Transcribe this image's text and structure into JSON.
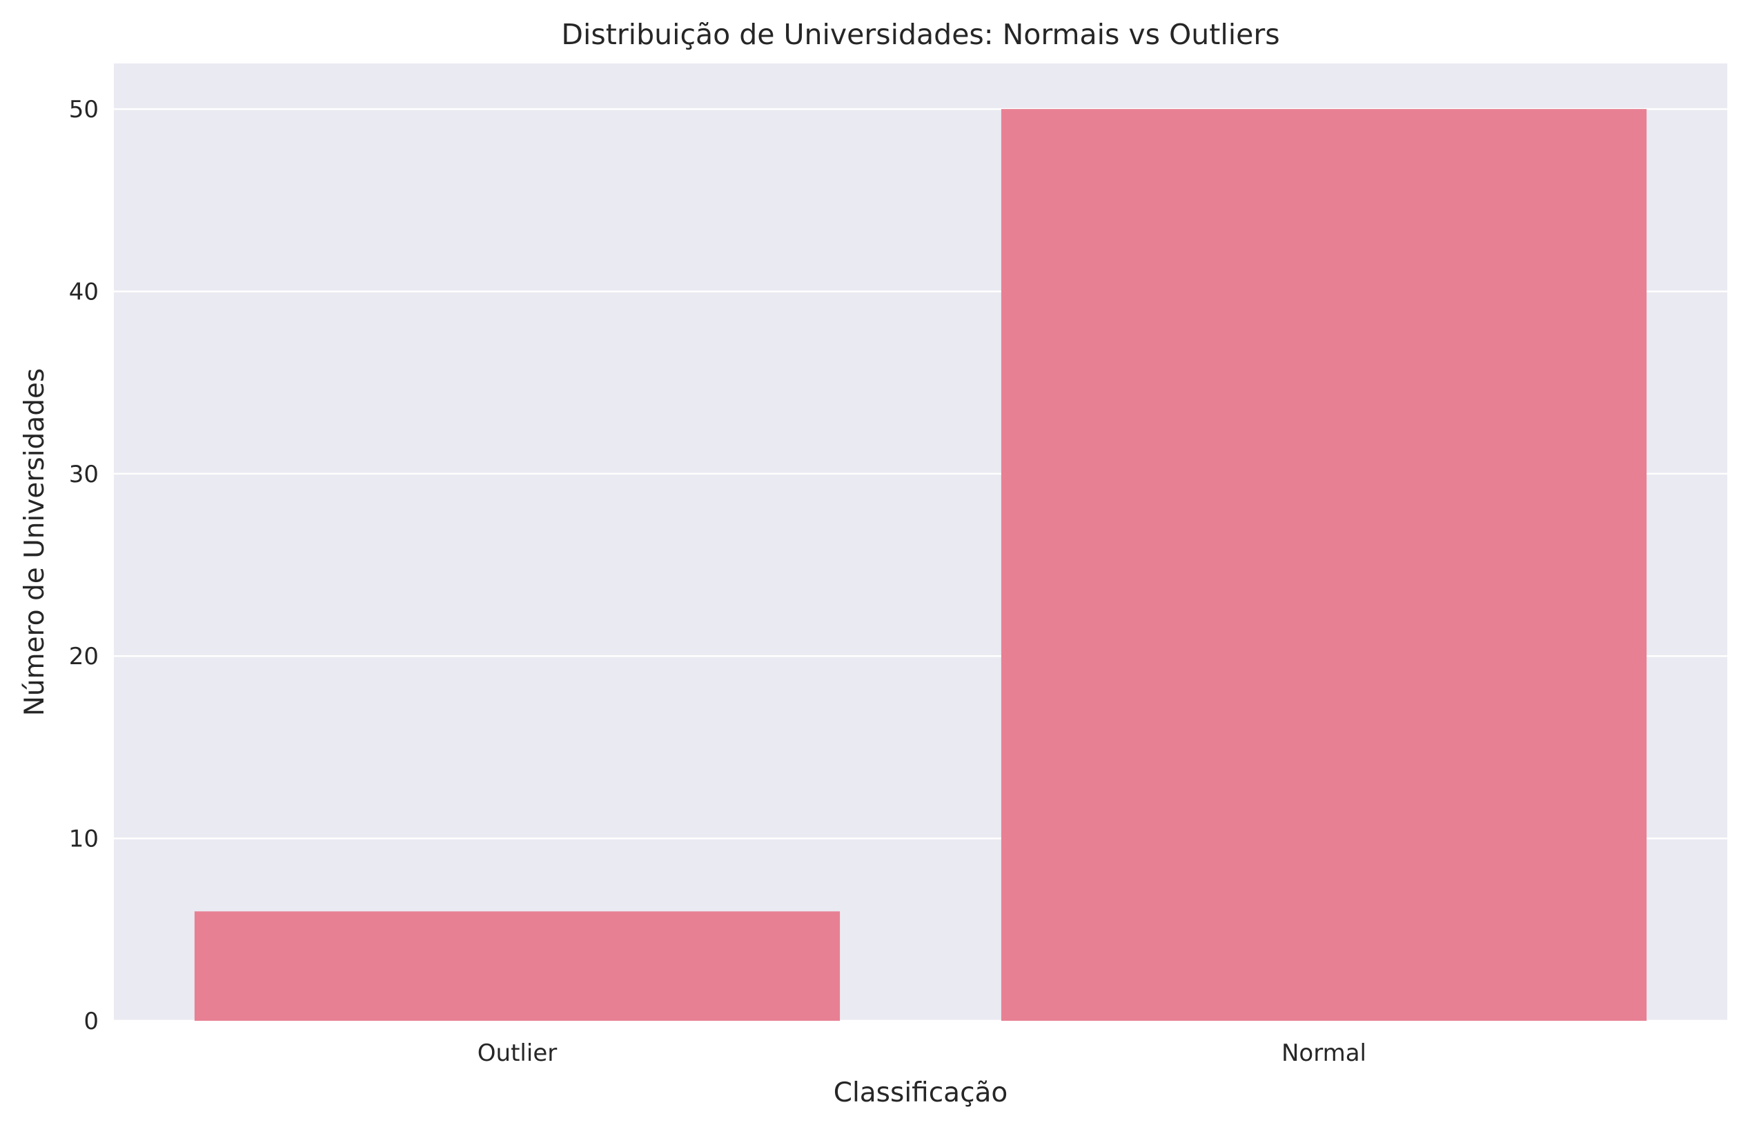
{
  "chart_data": {
    "type": "bar",
    "title": "Distribuição de Universidades: Normais vs Outliers",
    "xlabel": "Classificação",
    "ylabel": "Número de Universidades",
    "categories": [
      "Outlier",
      "Normal"
    ],
    "values": [
      6,
      50
    ],
    "ylim": [
      0,
      52.5
    ],
    "yticks": [
      0,
      10,
      20,
      30,
      40,
      50
    ],
    "grid": true,
    "style": "seaborn-darkgrid",
    "colors": {
      "bar": "#e88093",
      "plot_background": "#eaeaf2",
      "grid": "#ffffff",
      "text": "#262626"
    }
  }
}
